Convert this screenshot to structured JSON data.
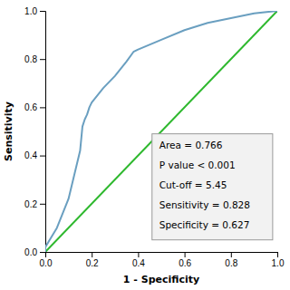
{
  "chart_data": {
    "type": "line",
    "xlabel": "1 - Specificity",
    "ylabel": "Sensitivity",
    "series": [
      {
        "color": "#2eb82e",
        "x": [
          0.0,
          1.0
        ],
        "values": [
          0.0,
          1.0
        ]
      },
      {
        "color": "#6a9fc0",
        "x": [
          0.0,
          0.0,
          0.05,
          0.1,
          0.15,
          0.16,
          0.17,
          0.18,
          0.19,
          0.2,
          0.25,
          0.3,
          0.35,
          0.38,
          0.4,
          0.5,
          0.6,
          0.7,
          0.8,
          0.9,
          1.0
        ],
        "values": [
          0.0,
          0.02,
          0.1,
          0.22,
          0.42,
          0.52,
          0.55,
          0.57,
          0.6,
          0.62,
          0.68,
          0.73,
          0.79,
          0.83,
          0.84,
          0.88,
          0.92,
          0.95,
          0.97,
          0.99,
          1.0
        ]
      }
    ],
    "xlim": [
      0.0,
      1.0
    ],
    "ylim": [
      0.0,
      1.0
    ],
    "xticks": [
      {
        "value": 0.0,
        "label": "0.0"
      },
      0.2,
      0.4,
      0.6,
      0.8,
      {
        "value": 1.0,
        "label": "1.0"
      }
    ],
    "yticks": [
      {
        "value": 0.0,
        "label": "0.0"
      },
      0.2,
      0.4,
      0.6,
      0.8,
      {
        "value": 1.0,
        "label": "1.0"
      }
    ],
    "annotations": [
      "Area = 0.766",
      "P value < 0.001",
      "Cut-off = 5.45",
      "Sensitivity = 0.828",
      "Specificity = 0.627"
    ],
    "grid": false
  }
}
